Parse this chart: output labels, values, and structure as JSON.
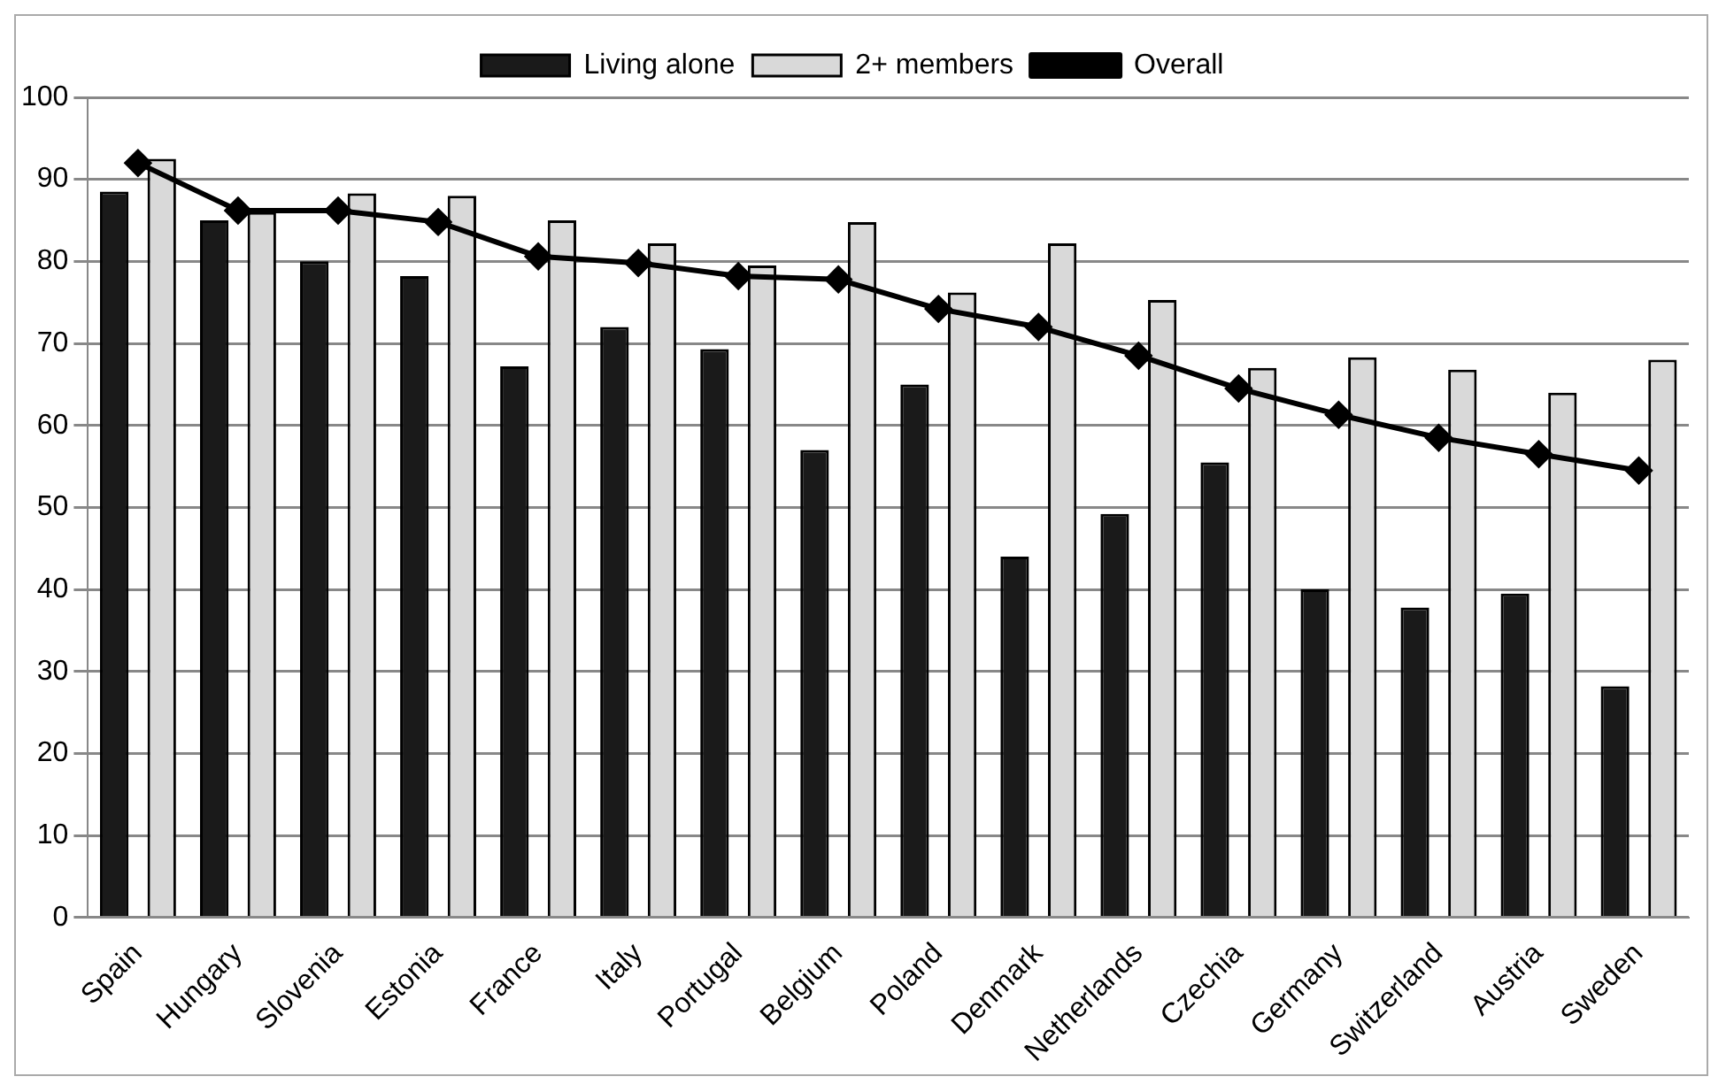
{
  "chart_data": {
    "type": "bar",
    "categories": [
      "Spain",
      "Hungary",
      "Slovenia",
      "Estonia",
      "France",
      "Italy",
      "Portugal",
      "Belgium",
      "Poland",
      "Denmark",
      "Netherlands",
      "Czechia",
      "Germany",
      "Switzerland",
      "Austria",
      "Sweden"
    ],
    "series": [
      {
        "name": "Living alone",
        "color": "#1a1a1a",
        "values": [
          88.5,
          85,
          80,
          78.2,
          67.2,
          72,
          69.3,
          57,
          65,
          44,
          49.2,
          55.5,
          40,
          37.8,
          39.5,
          28.2
        ]
      },
      {
        "name": "2+ members",
        "color": "#d9d9d9",
        "values": [
          92.5,
          86,
          88.3,
          88,
          85,
          82.2,
          79.5,
          84.8,
          76.2,
          82.2,
          75.3,
          67,
          68.3,
          66.8,
          64,
          68
        ]
      },
      {
        "name": "Overall",
        "type": "line",
        "color": "#000000",
        "values": [
          92,
          86.2,
          86.2,
          84.8,
          80.6,
          79.8,
          78.2,
          77.8,
          74.2,
          72,
          68.5,
          64.5,
          61.3,
          58.5,
          56.5,
          54.5
        ]
      }
    ],
    "ylim": [
      0,
      100
    ],
    "yticks": [
      0,
      10,
      20,
      30,
      40,
      50,
      60,
      70,
      80,
      90,
      100
    ],
    "grid": "y",
    "legend": "top",
    "marker": "diamond",
    "line_style": "solid"
  }
}
